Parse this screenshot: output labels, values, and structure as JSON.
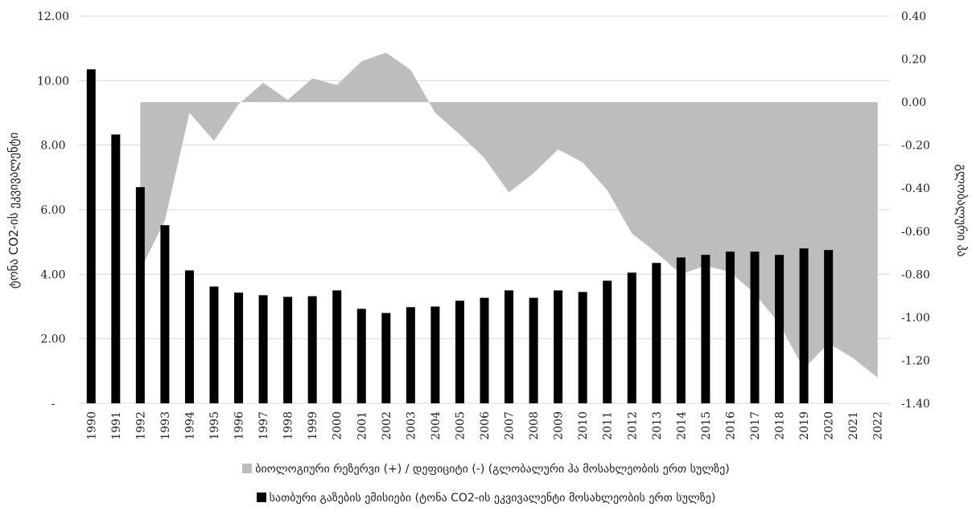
{
  "chart_data": {
    "type": "bar+area",
    "categories": [
      "1990",
      "1991",
      "1992",
      "1993",
      "1994",
      "1995",
      "1996",
      "1997",
      "1998",
      "1999",
      "2000",
      "2001",
      "2002",
      "2003",
      "2004",
      "2005",
      "2006",
      "2007",
      "2008",
      "2009",
      "2010",
      "2011",
      "2012",
      "2013",
      "2014",
      "2015",
      "2016",
      "2017",
      "2018",
      "2019",
      "2020",
      "2021",
      "2022"
    ],
    "y_left": {
      "title": "ტონა CO2-ის ეკვივალენტი",
      "ticks": [
        "12.00",
        "10.00",
        "8.00",
        "6.00",
        "4.00",
        "2.00",
        "-"
      ],
      "ylim": [
        0,
        12
      ]
    },
    "y_right": {
      "title": "გლობალური ჰა",
      "ticks": [
        "0.40",
        "0.20",
        "0.00",
        "-0.20",
        "-0.40",
        "-0.60",
        "-0.80",
        "-1.00",
        "-1.20",
        "-1.40"
      ],
      "ylim": [
        -1.4,
        0.4
      ]
    },
    "series": [
      {
        "name": "ბიოლოგიური რეზერვი (+) / დეფიციტი (-) (გლობალური ჰა მოსახლეობის ერთ სულზე)",
        "kind": "area",
        "axis": "right",
        "color": "#bdbdbd",
        "values": [
          null,
          null,
          -0.78,
          -0.55,
          -0.05,
          -0.18,
          -0.01,
          0.09,
          0.01,
          0.11,
          0.08,
          0.19,
          0.23,
          0.15,
          -0.05,
          -0.15,
          -0.26,
          -0.42,
          -0.33,
          -0.22,
          -0.28,
          -0.41,
          -0.61,
          -0.7,
          -0.8,
          -0.76,
          -0.79,
          -0.89,
          -1.03,
          -1.24,
          -1.12,
          -1.19,
          -1.28
        ]
      },
      {
        "name": "სათბური გაზების ემისიები (ტონა CO2-ის ეკვივალენტი მოსახლეობის ერთ სულზე)",
        "kind": "bar",
        "axis": "left",
        "color": "#000000",
        "values": [
          10.35,
          8.33,
          6.7,
          5.52,
          4.12,
          3.62,
          3.43,
          3.35,
          3.3,
          3.32,
          3.5,
          2.93,
          2.8,
          2.98,
          3.0,
          3.18,
          3.27,
          3.5,
          3.27,
          3.5,
          3.45,
          3.8,
          4.05,
          4.35,
          4.52,
          4.6,
          4.7,
          4.7,
          4.6,
          4.8,
          4.75,
          null,
          null
        ]
      }
    ],
    "grid": true,
    "legend_position": "bottom"
  }
}
